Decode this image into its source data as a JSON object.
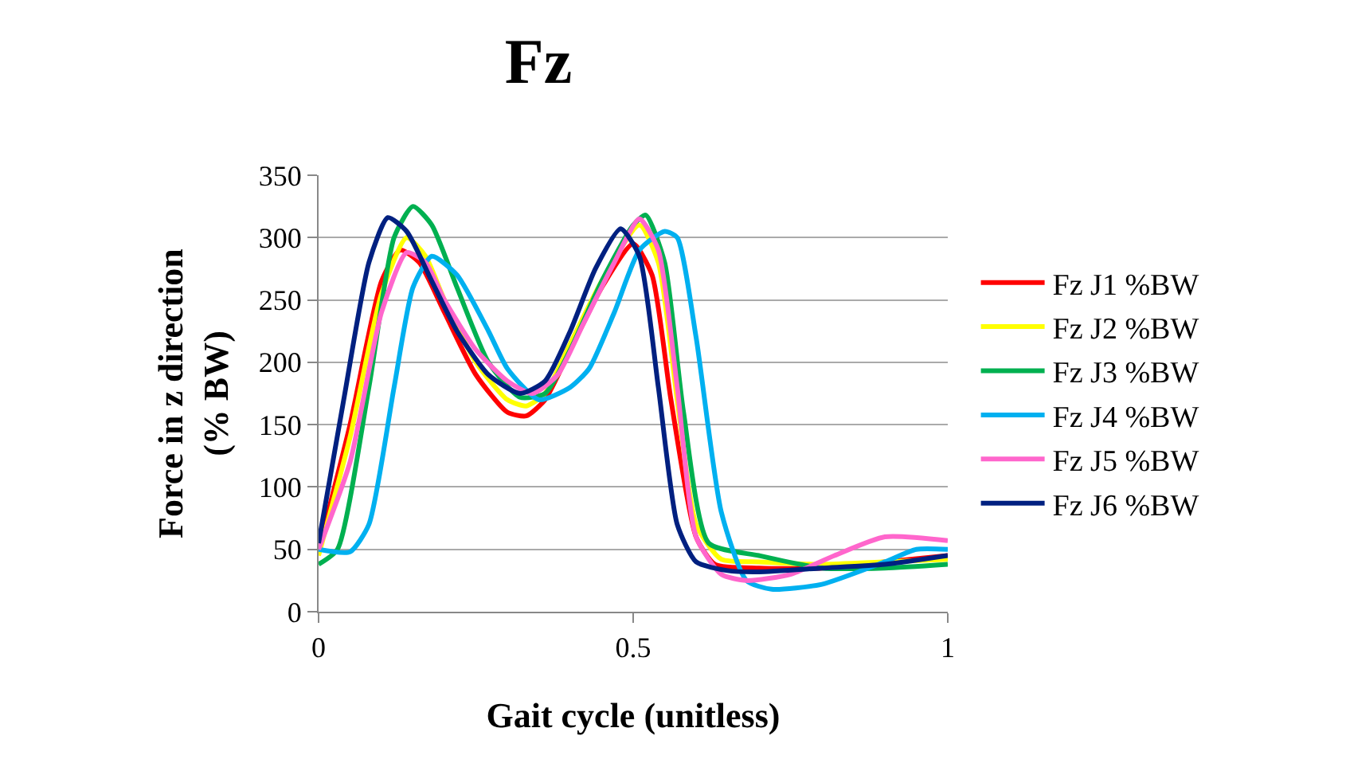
{
  "chart_data": {
    "type": "line",
    "title": "Fz",
    "xlabel": "Gait cycle (unitless)",
    "ylabel": "Force in z direction (% BW)",
    "xlim": [
      0,
      1
    ],
    "xticks": [
      0,
      0.5,
      1
    ],
    "ylim": [
      0,
      350
    ],
    "yticks": [
      0,
      50,
      100,
      150,
      200,
      250,
      300,
      350
    ],
    "grid": "y",
    "legend": "right",
    "marker": "none",
    "line_style": "solid",
    "series": [
      {
        "name": "Fz J1 %BW",
        "color": "#ff0000",
        "x": [
          0,
          0.05,
          0.1,
          0.13,
          0.16,
          0.2,
          0.25,
          0.3,
          0.33,
          0.36,
          0.4,
          0.45,
          0.5,
          0.53,
          0.56,
          0.6,
          0.63,
          0.7,
          0.8,
          0.9,
          1
        ],
        "values": [
          50,
          150,
          265,
          290,
          280,
          240,
          190,
          160,
          157,
          170,
          210,
          260,
          295,
          270,
          170,
          60,
          38,
          35,
          35,
          40,
          45
        ]
      },
      {
        "name": "Fz J2 %BW",
        "color": "#ffff00",
        "x": [
          0,
          0.05,
          0.1,
          0.14,
          0.17,
          0.2,
          0.25,
          0.3,
          0.33,
          0.36,
          0.4,
          0.45,
          0.51,
          0.54,
          0.57,
          0.6,
          0.64,
          0.7,
          0.8,
          0.9,
          1
        ],
        "values": [
          45,
          140,
          255,
          300,
          285,
          250,
          200,
          170,
          165,
          175,
          215,
          265,
          310,
          280,
          170,
          70,
          42,
          40,
          38,
          40,
          42
        ]
      },
      {
        "name": "Fz J3 %BW",
        "color": "#00b050",
        "x": [
          0,
          0.03,
          0.08,
          0.12,
          0.15,
          0.18,
          0.22,
          0.27,
          0.32,
          0.36,
          0.4,
          0.45,
          0.5,
          0.52,
          0.55,
          0.58,
          0.62,
          0.7,
          0.8,
          0.9,
          1
        ],
        "values": [
          38,
          50,
          180,
          300,
          325,
          310,
          260,
          200,
          172,
          175,
          210,
          265,
          310,
          318,
          280,
          160,
          55,
          45,
          35,
          35,
          38
        ]
      },
      {
        "name": "Fz J4 %BW",
        "color": "#00b0f0",
        "x": [
          0,
          0.05,
          0.08,
          0.12,
          0.15,
          0.18,
          0.22,
          0.27,
          0.3,
          0.35,
          0.4,
          0.43,
          0.47,
          0.51,
          0.55,
          0.57,
          0.6,
          0.64,
          0.68,
          0.72,
          0.8,
          0.9,
          0.95,
          1
        ],
        "values": [
          50,
          48,
          70,
          180,
          260,
          285,
          270,
          225,
          195,
          170,
          180,
          195,
          240,
          290,
          305,
          300,
          220,
          80,
          25,
          18,
          22,
          40,
          50,
          50
        ]
      },
      {
        "name": "Fz J5 %BW",
        "color": "#ff66cc",
        "x": [
          0,
          0.05,
          0.1,
          0.14,
          0.17,
          0.2,
          0.25,
          0.3,
          0.34,
          0.38,
          0.42,
          0.47,
          0.51,
          0.54,
          0.57,
          0.6,
          0.64,
          0.68,
          0.75,
          0.82,
          0.9,
          1
        ],
        "values": [
          50,
          120,
          240,
          288,
          280,
          250,
          210,
          185,
          175,
          190,
          230,
          280,
          315,
          290,
          180,
          60,
          30,
          25,
          30,
          45,
          60,
          57
        ]
      },
      {
        "name": "Fz J6 %BW",
        "color": "#002080",
        "x": [
          0,
          0.04,
          0.08,
          0.11,
          0.14,
          0.18,
          0.22,
          0.27,
          0.32,
          0.36,
          0.4,
          0.44,
          0.48,
          0.51,
          0.54,
          0.57,
          0.6,
          0.65,
          0.7,
          0.8,
          0.9,
          1
        ],
        "values": [
          55,
          170,
          280,
          316,
          305,
          265,
          225,
          190,
          175,
          185,
          225,
          275,
          307,
          285,
          180,
          70,
          40,
          33,
          32,
          35,
          38,
          45
        ]
      }
    ]
  }
}
